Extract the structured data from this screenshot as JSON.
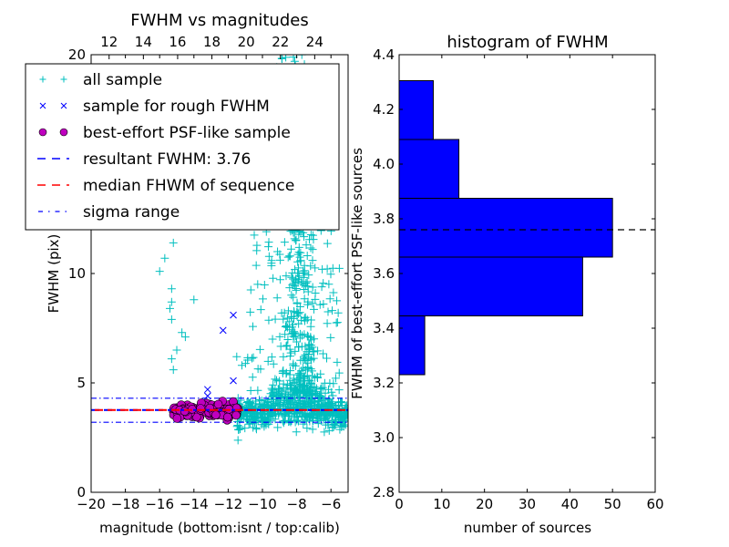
{
  "chart_data": [
    {
      "type": "scatter",
      "title": "FWHM vs magnitudes",
      "xlabel": "magnitude (bottom:isnt / top:calib)",
      "ylabel": "FWHM (pix)",
      "xlim": [
        -20,
        -5
      ],
      "ylim": [
        0,
        20
      ],
      "xticks": [
        "−20",
        "−18",
        "−16",
        "−14",
        "−12",
        "−10",
        "−8",
        "−6"
      ],
      "xtick_values": [
        -20,
        -18,
        -16,
        -14,
        -12,
        -10,
        -8,
        -6
      ],
      "yticks": [
        "0",
        "5",
        "10",
        "20"
      ],
      "ytick_values": [
        0,
        5,
        10,
        20
      ],
      "top_xticks": [
        "12",
        "14",
        "16",
        "18",
        "20",
        "22",
        "24"
      ],
      "top_xtick_positions": [
        -18.95,
        -16.95,
        -14.95,
        -12.95,
        -10.95,
        -8.95,
        -6.95
      ],
      "legend": {
        "placement": "upper-left",
        "entries": [
          {
            "label": "all sample",
            "marker": "plus",
            "color": "#00bfbf"
          },
          {
            "label": "sample for rough FWHM",
            "marker": "x",
            "color": "#0000ff"
          },
          {
            "label": "best-effort PSF-like sample",
            "marker": "circle",
            "color": "#bf00bf"
          },
          {
            "label": "resultant FWHM: 3.76",
            "marker": "dashed",
            "color": "#0000ff"
          },
          {
            "label": "median FHWM of sequence",
            "marker": "dashed",
            "color": "#ff0000"
          },
          {
            "label": "sigma range",
            "marker": "dashdot",
            "color": "#0000ff"
          }
        ]
      },
      "lines": {
        "resultant_fwhm": 3.76,
        "median_fwhm": 3.76,
        "sigma_low": 3.2,
        "sigma_high": 4.3
      },
      "rough_sample": [
        {
          "x": -11.7,
          "y": 8.1
        },
        {
          "x": -12.3,
          "y": 7.4
        },
        {
          "x": -11.7,
          "y": 5.1
        },
        {
          "x": -13.2,
          "y": 4.7
        },
        {
          "x": -13.2,
          "y": 4.4
        }
      ],
      "psf_sample_region": {
        "x_range": [
          -15.2,
          -11.4
        ],
        "y_range": [
          3.3,
          4.2
        ],
        "count": 150
      },
      "all_sample_clusters": [
        {
          "x_range": [
            -11.5,
            -5
          ],
          "y_range": [
            2.5,
            4.5
          ],
          "count": 600
        },
        {
          "x_range": [
            -9.5,
            -6.5
          ],
          "y_range": [
            4.5,
            20
          ],
          "count": 350
        },
        {
          "x_range": [
            -11,
            -5.5
          ],
          "y_range": [
            4.5,
            12
          ],
          "count": 120
        }
      ],
      "all_sample_outliers": [
        {
          "x": -15.2,
          "y": 11.4
        },
        {
          "x": -15.7,
          "y": 10.7
        },
        {
          "x": -16.0,
          "y": 10.1
        },
        {
          "x": -15.3,
          "y": 9.3
        },
        {
          "x": -15.3,
          "y": 8.7
        },
        {
          "x": -14.0,
          "y": 8.8
        },
        {
          "x": -15.4,
          "y": 8.4
        },
        {
          "x": -15.3,
          "y": 7.9
        },
        {
          "x": -14.7,
          "y": 7.3
        },
        {
          "x": -14.5,
          "y": 7.1
        },
        {
          "x": -15.0,
          "y": 6.5
        },
        {
          "x": -15.3,
          "y": 6.1
        },
        {
          "x": -15.2,
          "y": 5.6
        },
        {
          "x": -11.5,
          "y": 6.2
        },
        {
          "x": -11.2,
          "y": 5.8
        }
      ]
    },
    {
      "type": "bar",
      "orientation": "horizontal",
      "title": "histogram of FWHM",
      "xlabel": "number of sources",
      "ylabel": "FWHM of best-effort PSF-like sources",
      "xlim": [
        0,
        60
      ],
      "ylim": [
        2.8,
        4.4
      ],
      "xticks": [
        "0",
        "10",
        "20",
        "30",
        "40",
        "50",
        "60"
      ],
      "xtick_values": [
        0,
        10,
        20,
        30,
        40,
        50,
        60
      ],
      "yticks": [
        "2.8",
        "3.0",
        "3.2",
        "3.4",
        "3.6",
        "3.8",
        "4.0",
        "4.2",
        "4.4"
      ],
      "ytick_values": [
        2.8,
        3.0,
        3.2,
        3.4,
        3.6,
        3.8,
        4.0,
        4.2,
        4.4
      ],
      "bins": [
        {
          "low": 3.23,
          "high": 3.445,
          "count": 6
        },
        {
          "low": 3.445,
          "high": 3.66,
          "count": 43
        },
        {
          "low": 3.66,
          "high": 3.875,
          "count": 50
        },
        {
          "low": 3.875,
          "high": 4.09,
          "count": 14
        },
        {
          "low": 4.09,
          "high": 4.305,
          "count": 8
        }
      ],
      "bar_color": "#0000ff",
      "reference_line": 3.76
    }
  ]
}
